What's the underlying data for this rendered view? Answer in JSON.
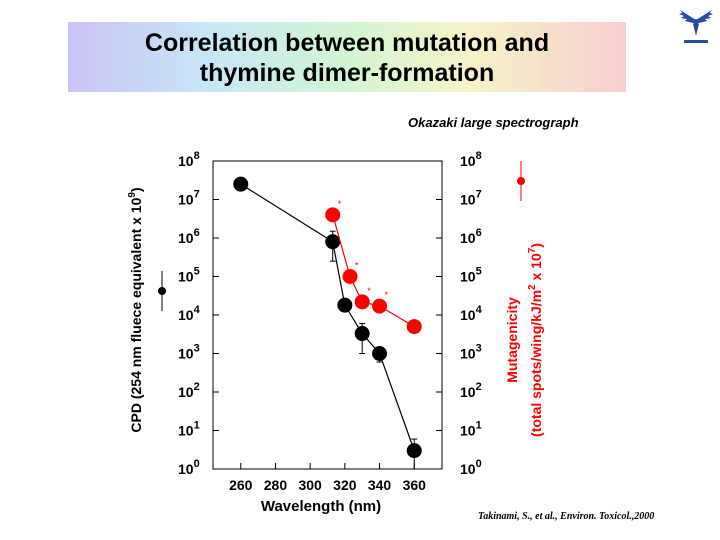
{
  "slide": {
    "title_line1": "Correlation between mutation and",
    "title_line2": "thymine dimer-formation",
    "annotation": "Okazaki large spectrograph",
    "citation": "Takinami, S., et al., Environ. Toxicol.,2000",
    "colors": {
      "black_series": "#000000",
      "red_series": "#ff0000"
    },
    "logo_icon": "university-emblem-icon"
  },
  "chart_data": {
    "type": "scatter",
    "xlabel": "Wavelength (nm)",
    "x_ticks": [
      260,
      280,
      300,
      320,
      340,
      360
    ],
    "xlim": [
      244,
      376
    ],
    "y_scale": "log",
    "ylim": [
      1,
      100000000
    ],
    "y_ticks": [
      {
        "base": "10",
        "exp": "0"
      },
      {
        "base": "10",
        "exp": "1"
      },
      {
        "base": "10",
        "exp": "2"
      },
      {
        "base": "10",
        "exp": "3"
      },
      {
        "base": "10",
        "exp": "4"
      },
      {
        "base": "10",
        "exp": "5"
      },
      {
        "base": "10",
        "exp": "6"
      },
      {
        "base": "10",
        "exp": "7"
      },
      {
        "base": "10",
        "exp": "8"
      }
    ],
    "left_ylabel": {
      "main": "CPD (254 nm fluece equivalent x 10",
      "sup": "9",
      "end": ")"
    },
    "right_ylabel": {
      "line1": "Mutagenicity",
      "line2_main": "(total spots/wing/kJ/m",
      "line2_sup": "2",
      "line2_mid": " x 10",
      "line2_sup2": "7",
      "line2_end": ")"
    },
    "series": [
      {
        "axis": "left",
        "color": "#000000",
        "points": [
          {
            "x": 260,
            "y": 25000000
          },
          {
            "x": 313,
            "y": 800000,
            "err_lo": 250000,
            "err_hi": 1500000
          },
          {
            "x": 320,
            "y": 18000
          },
          {
            "x": 330,
            "y": 3300,
            "err_lo": 1000,
            "err_hi": 6000
          },
          {
            "x": 340,
            "y": 1000,
            "err_lo": 600,
            "err_hi": 1400
          },
          {
            "x": 360,
            "y": 3,
            "err_lo": 1,
            "err_hi": 6
          }
        ]
      },
      {
        "axis": "right",
        "color": "#ff0000",
        "points": [
          {
            "x": 313,
            "y": 4000000,
            "marker": "*"
          },
          {
            "x": 323,
            "y": 100000,
            "marker": "*"
          },
          {
            "x": 330,
            "y": 22000,
            "marker": "*"
          },
          {
            "x": 340,
            "y": 17000,
            "marker": "*"
          },
          {
            "x": 360,
            "y": 5000
          }
        ]
      }
    ],
    "legend": [
      {
        "series": 0,
        "placement": "left"
      },
      {
        "series": 1,
        "placement": "right"
      }
    ]
  }
}
